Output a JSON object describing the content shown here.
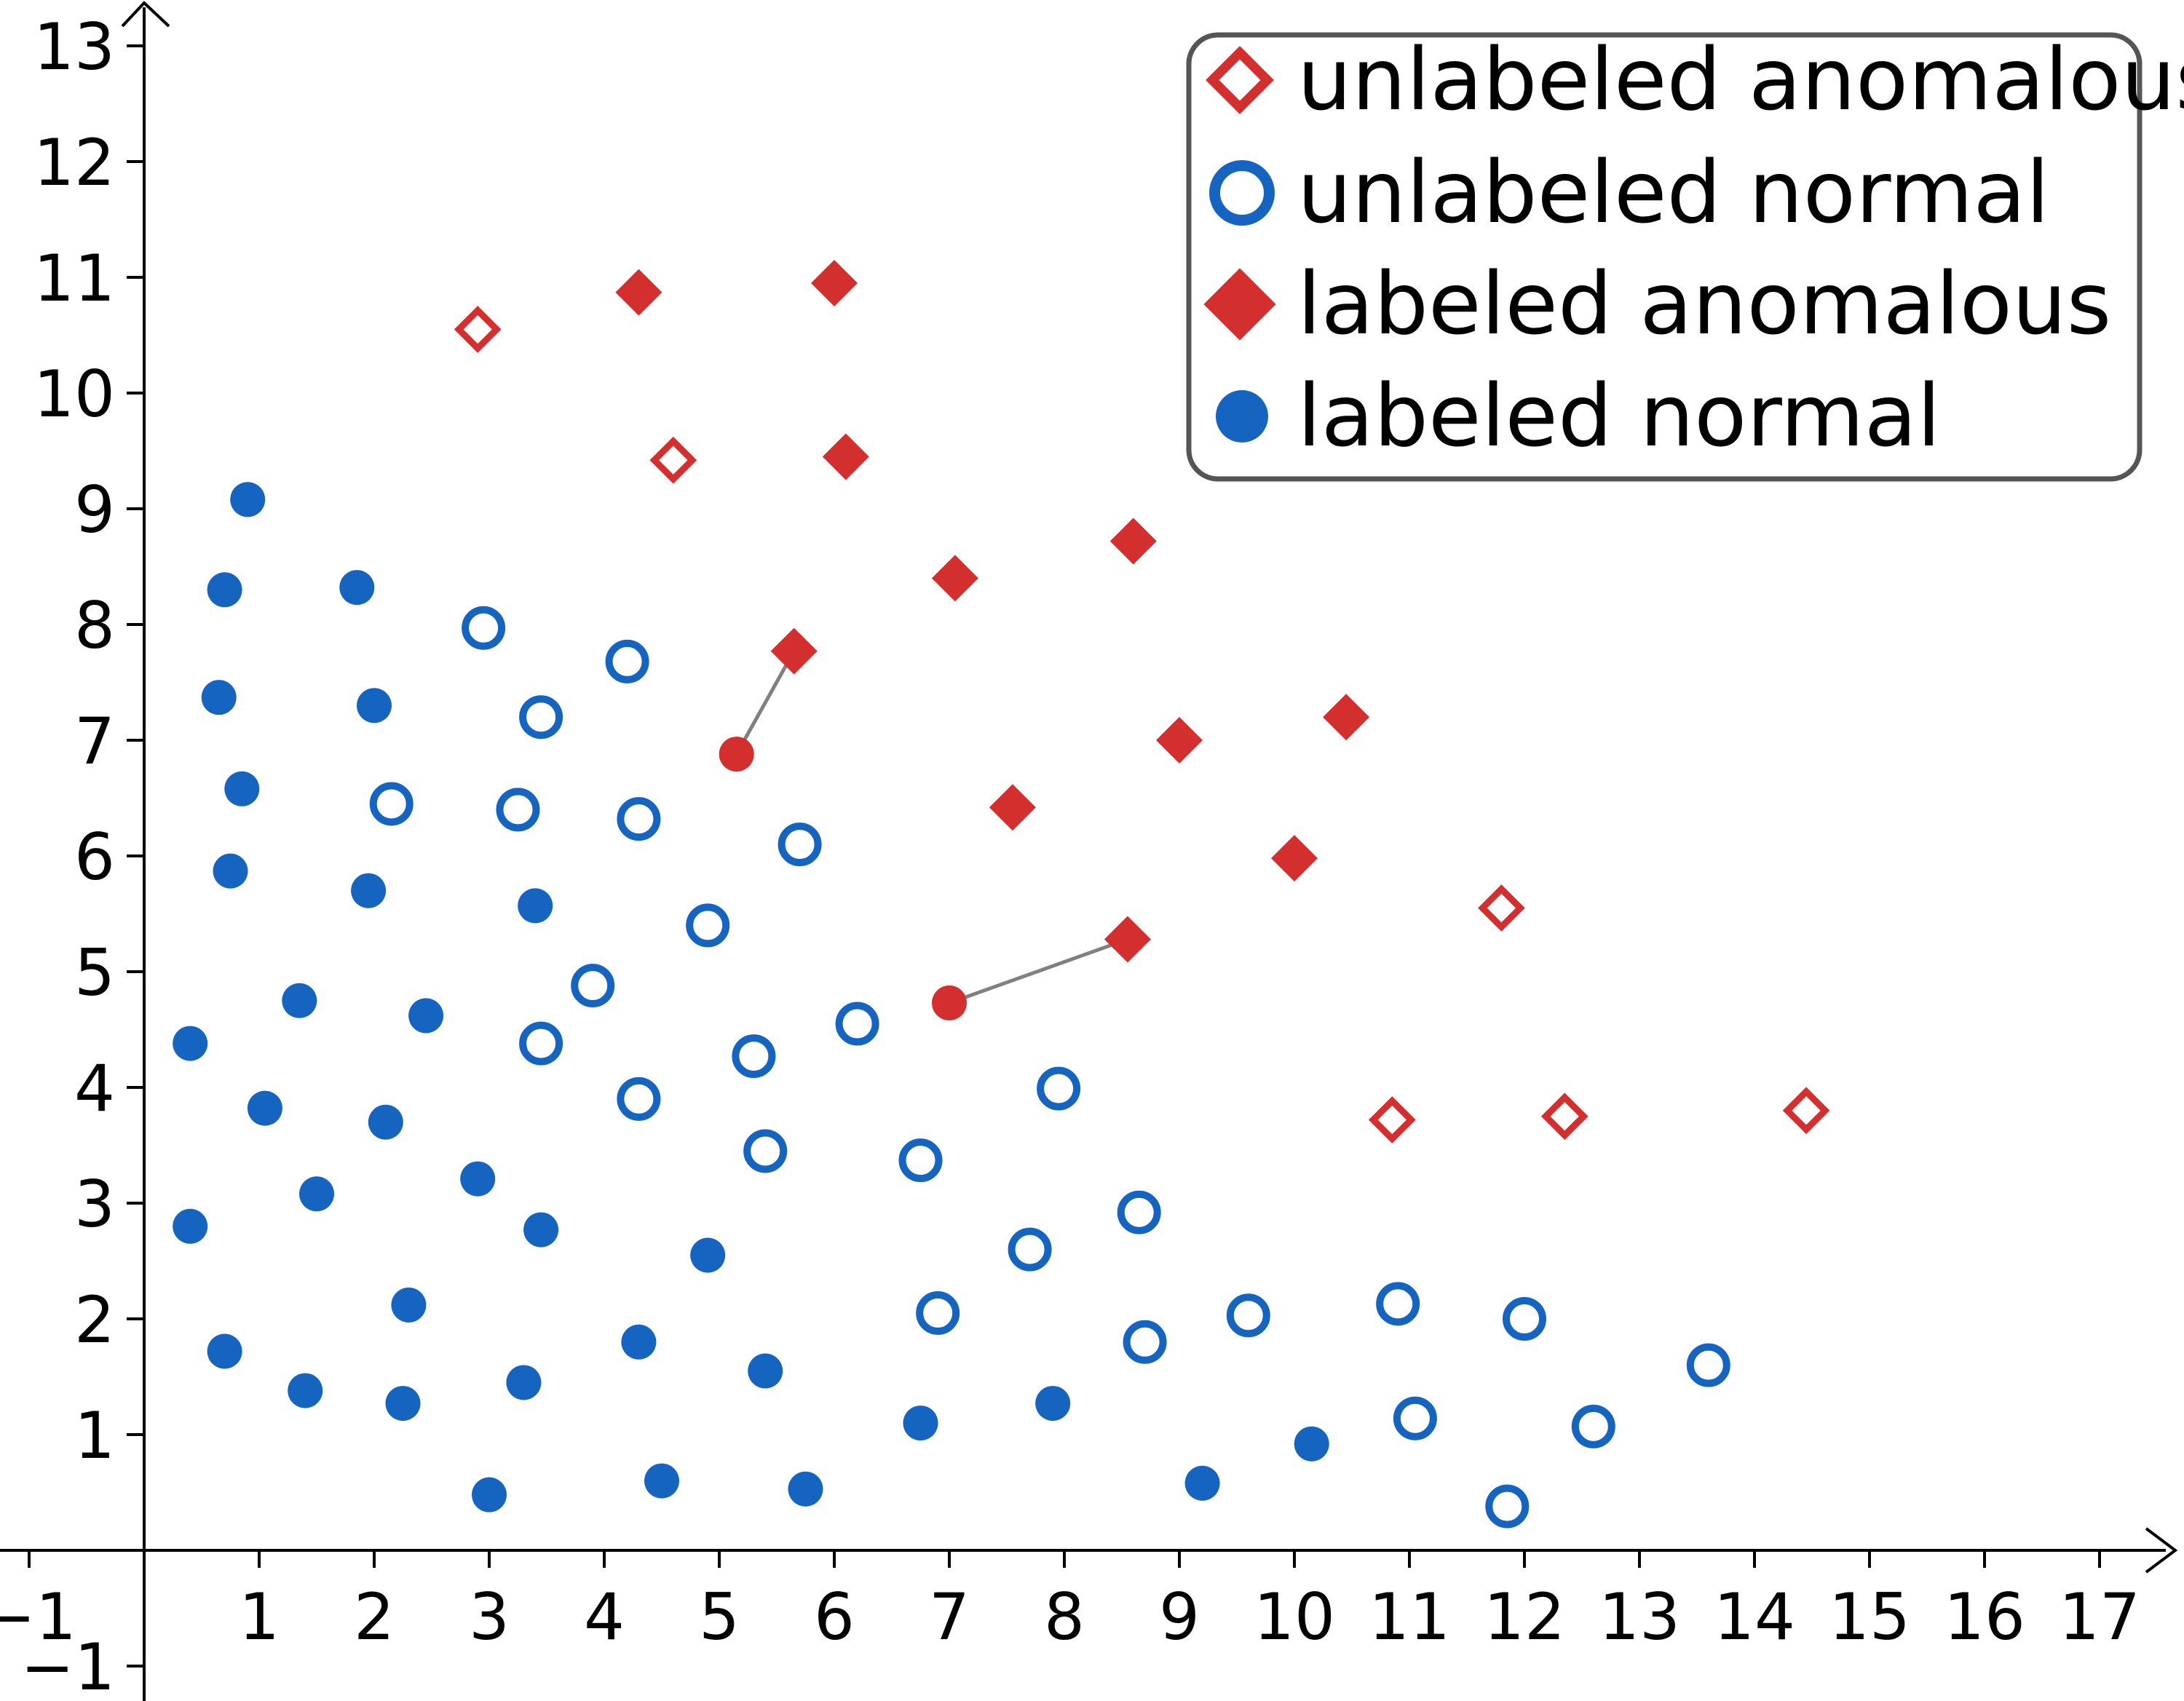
{
  "chart_data": {
    "type": "scatter",
    "title": "",
    "xlabel": "",
    "ylabel": "",
    "xlim": [
      -1.2,
      17.6
    ],
    "ylim": [
      -1.3,
      13.5
    ],
    "x_ticks": [
      -1,
      1,
      2,
      3,
      4,
      5,
      6,
      7,
      8,
      9,
      10,
      11,
      12,
      13,
      14,
      15,
      16,
      17
    ],
    "y_ticks": [
      -1,
      1,
      2,
      3,
      4,
      5,
      6,
      7,
      8,
      9,
      10,
      11,
      12,
      13
    ],
    "x_tick_labels": [
      "−1",
      "1",
      "2",
      "3",
      "4",
      "5",
      "6",
      "7",
      "8",
      "9",
      "10",
      "11",
      "12",
      "13",
      "14",
      "15",
      "16",
      "17"
    ],
    "y_tick_labels": [
      "−1",
      "1",
      "2",
      "3",
      "4",
      "5",
      "6",
      "7",
      "8",
      "9",
      "10",
      "11",
      "12",
      "13"
    ],
    "grid": false,
    "legend_position": "top-right",
    "legend": [
      {
        "label": "unlabeled anomalous",
        "marker": "diamond-open",
        "color": "#d32f2f"
      },
      {
        "label": "unlabeled normal",
        "marker": "circle-open",
        "color": "#1565c0"
      },
      {
        "label": "labeled anomalous",
        "marker": "diamond-filled",
        "color": "#d32f2f"
      },
      {
        "label": "labeled normal",
        "marker": "circle-filled",
        "color": "#1565c0"
      }
    ],
    "series": [
      {
        "name": "unlabeled anomalous",
        "marker": "diamond-open",
        "color": "#d32f2f",
        "points": [
          [
            2.9,
            10.55
          ],
          [
            4.6,
            9.42
          ],
          [
            11.8,
            5.55
          ],
          [
            10.85,
            3.72
          ],
          [
            12.35,
            3.75
          ],
          [
            14.45,
            3.8
          ]
        ]
      },
      {
        "name": "unlabeled normal",
        "marker": "circle-open",
        "color": "#1565c0",
        "points": [
          [
            2.95,
            7.97
          ],
          [
            4.2,
            7.68
          ],
          [
            3.45,
            7.2
          ],
          [
            2.15,
            6.45
          ],
          [
            3.25,
            6.4
          ],
          [
            4.3,
            6.32
          ],
          [
            5.7,
            6.1
          ],
          [
            4.9,
            5.4
          ],
          [
            3.9,
            4.88
          ],
          [
            3.45,
            4.38
          ],
          [
            5.3,
            4.27
          ],
          [
            6.2,
            4.55
          ],
          [
            4.3,
            3.9
          ],
          [
            5.4,
            3.45
          ],
          [
            6.75,
            3.37
          ],
          [
            7.95,
            3.99
          ],
          [
            8.65,
            2.92
          ],
          [
            7.7,
            2.6
          ],
          [
            6.9,
            2.05
          ],
          [
            8.7,
            1.8
          ],
          [
            9.6,
            2.03
          ],
          [
            10.9,
            2.13
          ],
          [
            12.0,
            2.0
          ],
          [
            11.05,
            1.14
          ],
          [
            12.6,
            1.07
          ],
          [
            13.6,
            1.6
          ],
          [
            11.85,
            0.38
          ]
        ]
      },
      {
        "name": "labeled anomalous",
        "marker": "diamond-filled",
        "color": "#d32f2f",
        "points": [
          [
            4.3,
            10.87
          ],
          [
            6.0,
            10.95
          ],
          [
            6.1,
            9.45
          ],
          [
            8.6,
            8.72
          ],
          [
            7.05,
            8.4
          ],
          [
            5.65,
            7.77
          ],
          [
            9.0,
            7.0
          ],
          [
            10.45,
            7.2
          ],
          [
            7.55,
            6.42
          ],
          [
            10.0,
            5.98
          ],
          [
            8.55,
            5.28
          ]
        ]
      },
      {
        "name": "labeled normal",
        "marker": "circle-filled",
        "color": "#1565c0",
        "points": [
          [
            0.9,
            9.08
          ],
          [
            0.7,
            8.3
          ],
          [
            1.85,
            8.32
          ],
          [
            0.65,
            7.37
          ],
          [
            2.0,
            7.3
          ],
          [
            0.85,
            6.58
          ],
          [
            0.75,
            5.87
          ],
          [
            1.95,
            5.7
          ],
          [
            3.4,
            5.57
          ],
          [
            1.35,
            4.75
          ],
          [
            2.45,
            4.62
          ],
          [
            0.4,
            4.38
          ],
          [
            1.05,
            3.82
          ],
          [
            2.1,
            3.7
          ],
          [
            1.5,
            3.08
          ],
          [
            2.9,
            3.21
          ],
          [
            3.45,
            2.77
          ],
          [
            0.4,
            2.8
          ],
          [
            4.9,
            2.55
          ],
          [
            2.3,
            2.12
          ],
          [
            0.7,
            1.72
          ],
          [
            4.3,
            1.8
          ],
          [
            1.4,
            1.38
          ],
          [
            2.25,
            1.27
          ],
          [
            3.3,
            1.45
          ],
          [
            5.4,
            1.55
          ],
          [
            6.75,
            1.1
          ],
          [
            7.9,
            1.27
          ],
          [
            3.0,
            0.48
          ],
          [
            4.5,
            0.6
          ],
          [
            5.75,
            0.53
          ],
          [
            9.2,
            0.58
          ],
          [
            10.15,
            0.92
          ]
        ]
      },
      {
        "name": "",
        "marker": "circle-filled",
        "color": "#d32f2f",
        "points": [
          [
            5.15,
            6.88
          ],
          [
            7.0,
            4.73
          ]
        ]
      }
    ],
    "links": [
      {
        "from": [
          5.15,
          6.88
        ],
        "to": [
          5.65,
          7.77
        ],
        "color": "#808080"
      },
      {
        "from": [
          7.0,
          4.73
        ],
        "to": [
          8.55,
          5.28
        ],
        "color": "#808080"
      }
    ]
  }
}
